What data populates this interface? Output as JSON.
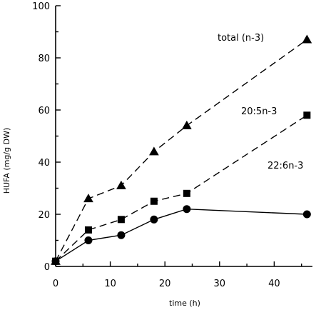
{
  "chart_data": {
    "type": "line",
    "title": "",
    "xlabel": "time (h)",
    "ylabel": "HUFA (mg/g DW)",
    "xlim": [
      0,
      47
    ],
    "ylim": [
      0,
      100
    ],
    "xticks": [
      0,
      10,
      20,
      30,
      40
    ],
    "yticks": [
      0,
      20,
      40,
      60,
      80,
      100
    ],
    "grid": false,
    "legend": "inline labels",
    "series": [
      {
        "name": "total (n-3)",
        "marker": "triangle",
        "line_style": "dashed",
        "x": [
          0,
          6,
          12,
          18,
          24,
          46
        ],
        "y": [
          2,
          26,
          31,
          44,
          54,
          87
        ]
      },
      {
        "name": "20:5n-3",
        "marker": "square",
        "line_style": "dashed",
        "x": [
          0,
          6,
          12,
          18,
          24,
          46
        ],
        "y": [
          2,
          14,
          18,
          25,
          28,
          58
        ]
      },
      {
        "name": "22:6n-3",
        "marker": "circle",
        "line_style": "solid",
        "x": [
          0,
          6,
          12,
          18,
          24,
          46
        ],
        "y": [
          2,
          10,
          12,
          18,
          22,
          20
        ]
      }
    ]
  }
}
